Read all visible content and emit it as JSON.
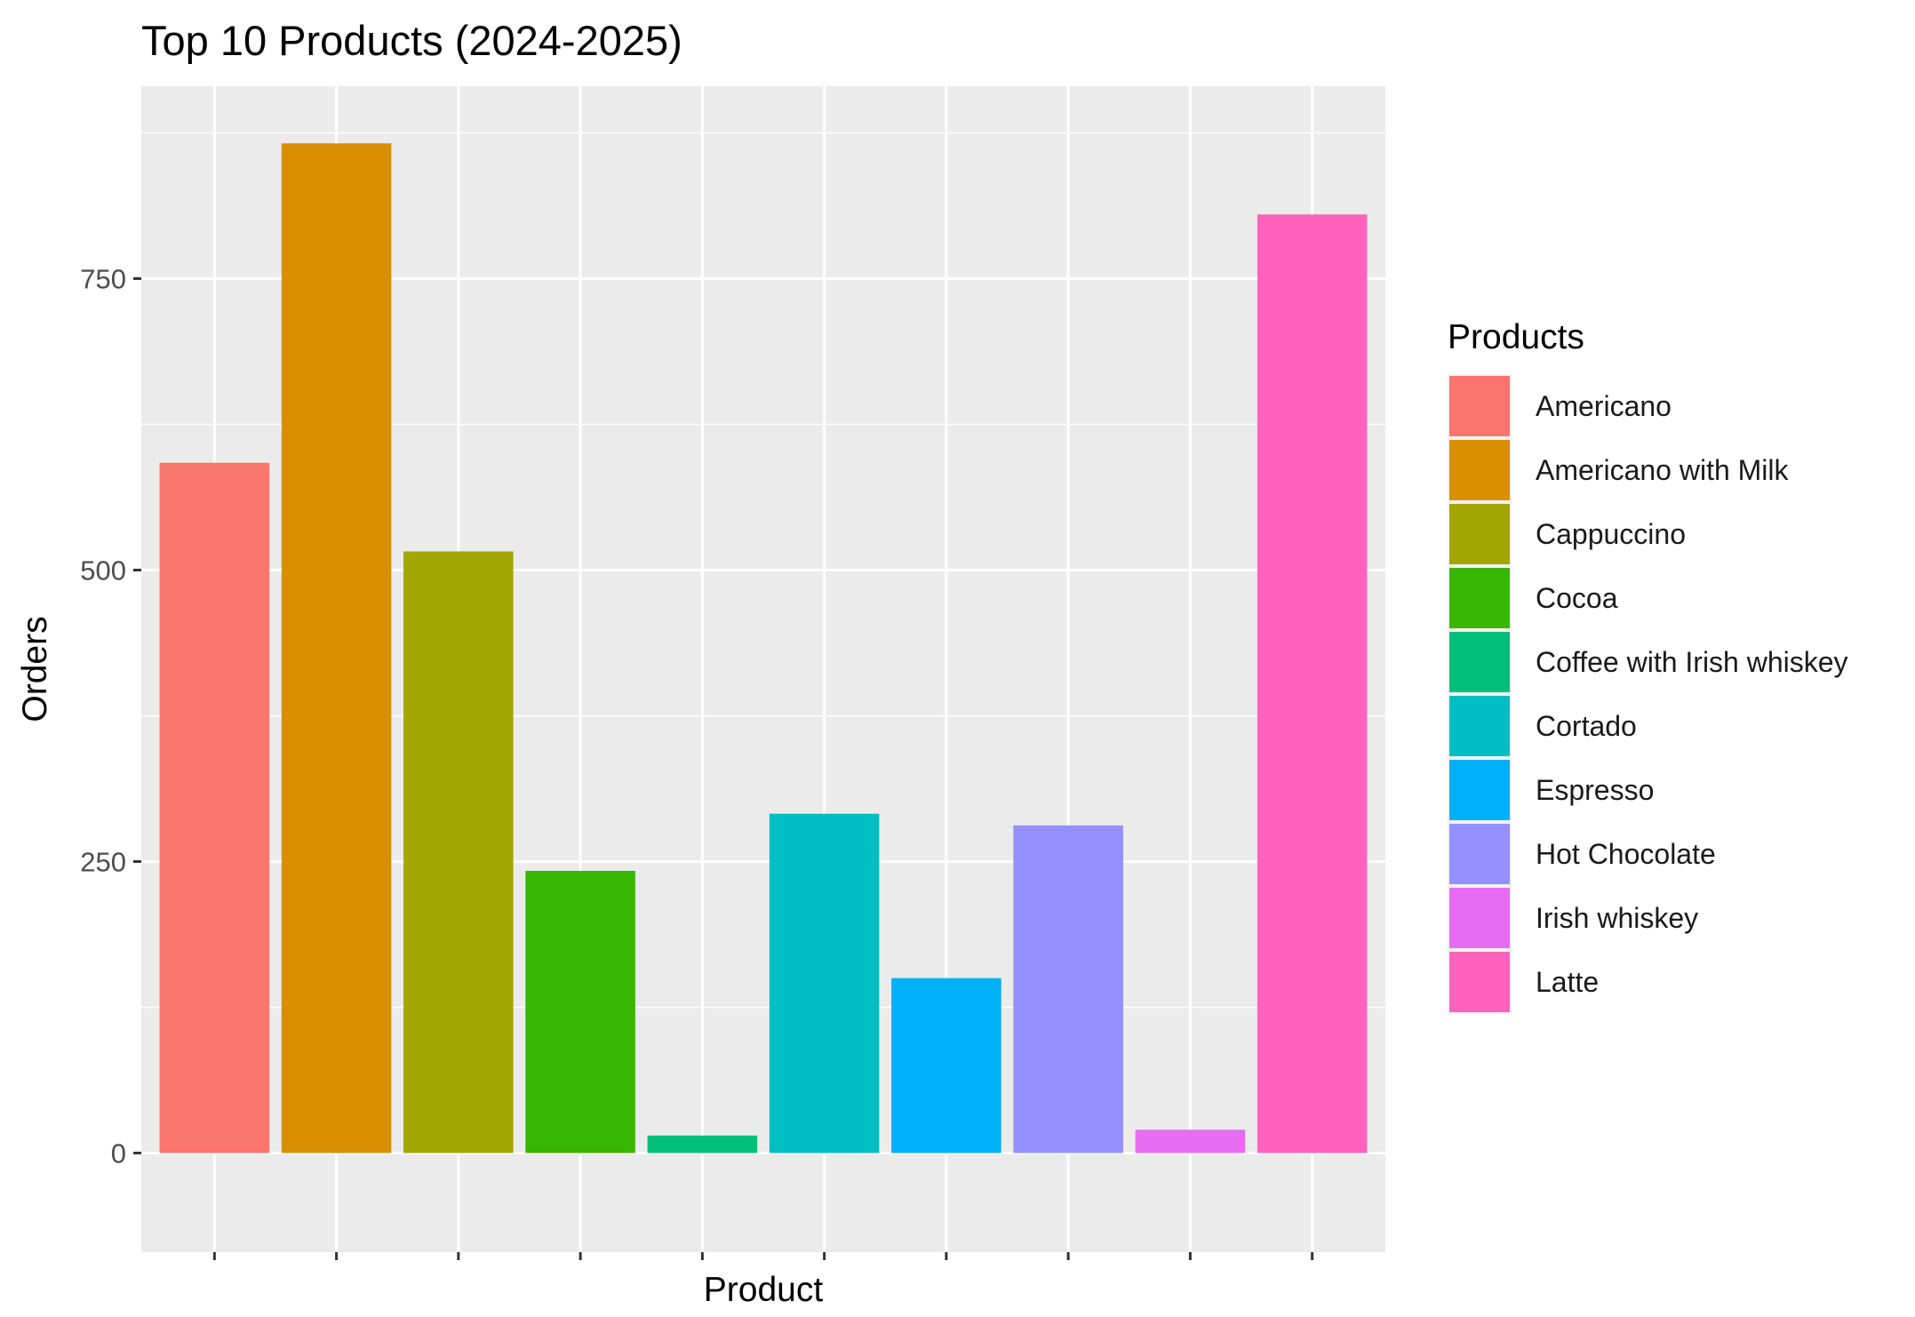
{
  "chart_data": {
    "type": "bar",
    "title": "Top 10 Products (2024-2025)",
    "xlabel": "Product",
    "ylabel": "Orders",
    "ylim": [
      -85,
      915
    ],
    "yticks": [
      0,
      250,
      500,
      750
    ],
    "grid": true,
    "x_tick_labels_shown": false,
    "legend": {
      "title": "Products",
      "position": "right"
    },
    "categories": [
      "Americano",
      "Americano with Milk",
      "Cappuccino",
      "Cocoa",
      "Coffee with Irish whiskey",
      "Cortado",
      "Espresso",
      "Hot Chocolate",
      "Irish whiskey",
      "Latte"
    ],
    "values": [
      592,
      866,
      516,
      242,
      15,
      291,
      150,
      281,
      20,
      805
    ],
    "colors": [
      "#F8766D",
      "#D89000",
      "#A3A500",
      "#39B600",
      "#00BF7D",
      "#00BFC4",
      "#00B0F6",
      "#9590FF",
      "#E76BF3",
      "#FF62BC"
    ]
  }
}
